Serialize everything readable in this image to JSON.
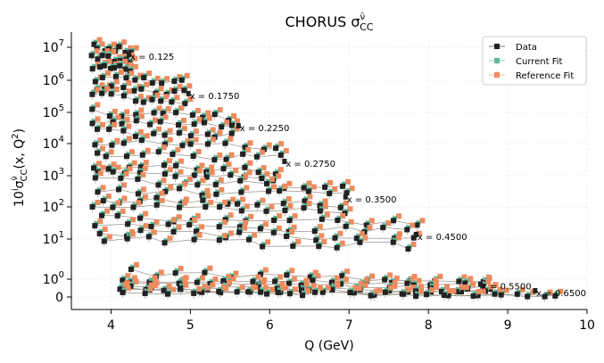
{
  "chart_data": {
    "type": "scatter",
    "title": "CHORUS σ",
    "title_sup": "ν̄",
    "title_sub": "CC",
    "xlabel": "Q (GeV)",
    "ylabel_pre": "10",
    "ylabel_sup_i": "i",
    "ylabel_sigma": "σ",
    "ylabel_sup_nu": "ν̄",
    "ylabel_sub": "CC",
    "ylabel_post": "(x, Q",
    "ylabel_sup_2": "2",
    "ylabel_close": ")",
    "xlim": [
      3.5,
      10
    ],
    "x_ticks": [
      {
        "v": 4,
        "label": "4"
      },
      {
        "v": 5,
        "label": "5"
      },
      {
        "v": 6,
        "label": "6"
      },
      {
        "v": 7,
        "label": "7"
      },
      {
        "v": 8,
        "label": "8"
      },
      {
        "v": 9,
        "label": "9"
      },
      {
        "v": 10,
        "label": "10"
      }
    ],
    "y_ticks": [
      {
        "base": "0",
        "exp": ""
      },
      {
        "base": "10",
        "exp": "0"
      },
      {
        "base": "10",
        "exp": "1"
      },
      {
        "base": "10",
        "exp": "2"
      },
      {
        "base": "10",
        "exp": "3"
      },
      {
        "base": "10",
        "exp": "4"
      },
      {
        "base": "10",
        "exp": "5"
      },
      {
        "base": "10",
        "exp": "6"
      },
      {
        "base": "10",
        "exp": "7"
      }
    ],
    "grid": true,
    "legend": {
      "placement": "top-right",
      "entries": [
        {
          "name": "Data",
          "color": "#222222"
        },
        {
          "name": "Current Fit",
          "color": "#5db89a"
        },
        {
          "name": "Reference Fit",
          "color": "#f08a5d"
        }
      ]
    },
    "annotations": [
      {
        "text": "x = 0.125",
        "x": 4.22,
        "level": 6.62
      },
      {
        "text": "x = 0.1750",
        "x": 4.97,
        "level": 5.42
      },
      {
        "text": "x = 0.2250",
        "x": 5.6,
        "level": 4.4
      },
      {
        "text": "x = 0.2750",
        "x": 6.18,
        "level": 3.28
      },
      {
        "text": "x = 0.3500",
        "x": 6.95,
        "level": 2.15
      },
      {
        "text": "x = 0.4500",
        "x": 7.84,
        "level": 0.98
      },
      {
        "text": "x = 0.5500",
        "x": 8.65,
        "level": -0.58
      },
      {
        "text": "x = 0.6500",
        "x": 9.34,
        "level": -0.95
      }
    ],
    "groups": [
      {
        "x": 0.125,
        "xmin": 3.75,
        "xmax": 4.3,
        "rows": [
          7,
          6.7,
          6.45
        ],
        "n": 8
      },
      {
        "x": 0.175,
        "xmin": 3.75,
        "xmax": 5.0,
        "rows": [
          6.05,
          5.75,
          5.5
        ],
        "n": 10
      },
      {
        "x": 0.225,
        "xmin": 3.75,
        "xmax": 5.65,
        "rows": [
          5.0,
          4.7,
          4.38
        ],
        "n": 11
      },
      {
        "x": 0.275,
        "xmin": 3.72,
        "xmax": 6.25,
        "rows": [
          4.05,
          3.7,
          3.3,
          3.1
        ],
        "n": 12
      },
      {
        "x": 0.35,
        "xmin": 3.75,
        "xmax": 7.15,
        "rows": [
          2.85,
          2.55,
          2.25,
          2.05
        ],
        "n": 13
      },
      {
        "x": 0.45,
        "xmin": 3.75,
        "xmax": 8.0,
        "rows": [
          1.7,
          1.45,
          1.2,
          1.0
        ],
        "n": 14
      },
      {
        "x": 0.55,
        "xmin": 4.1,
        "xmax": 9.0,
        "rows": [
          0.15,
          -0.05,
          -0.25,
          -0.45,
          -0.55
        ],
        "n": 15
      },
      {
        "x": 0.65,
        "xmin": 4.0,
        "xmax": 9.75,
        "rows": [
          -0.65,
          -0.72
        ],
        "n": 18
      }
    ]
  }
}
